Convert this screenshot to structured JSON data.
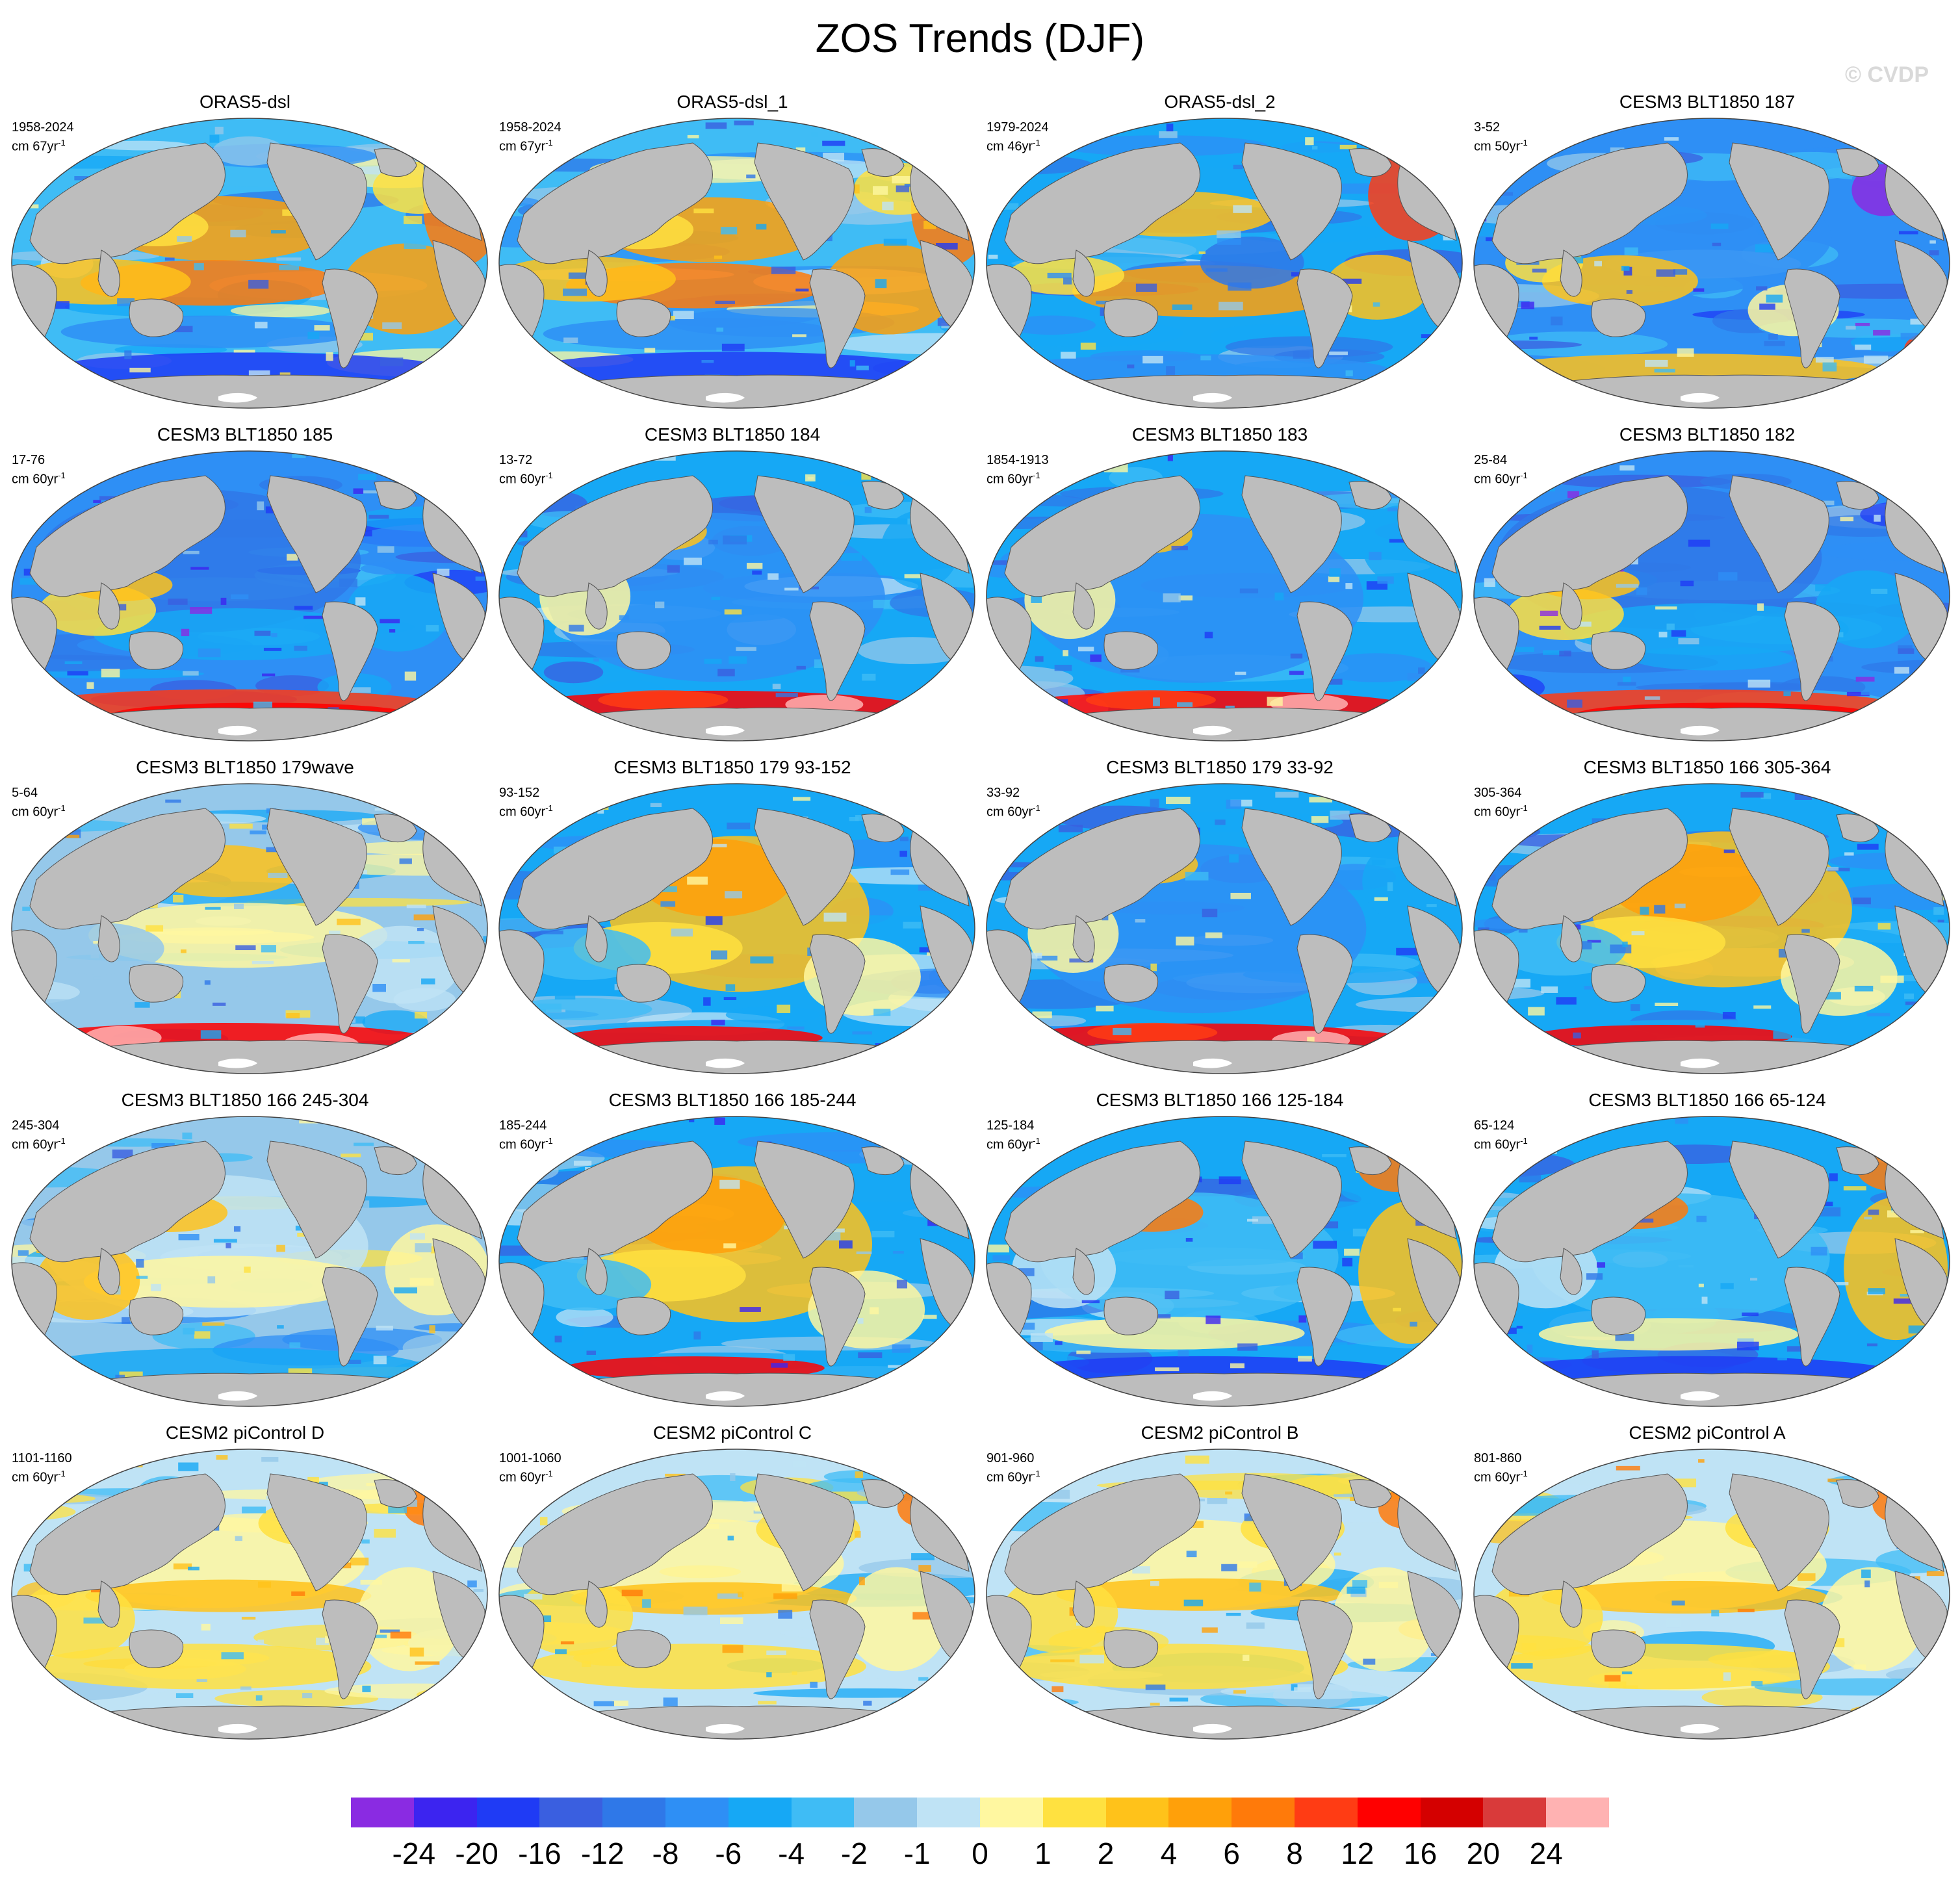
{
  "figure": {
    "title": "ZOS Trends (DJF)",
    "watermark": "© CVDP"
  },
  "panels": [
    {
      "title": "ORAS5-dsl",
      "period": "1958-2024",
      "units": "cm 67yr",
      "pattern": 0
    },
    {
      "title": "ORAS5-dsl_1",
      "period": "1958-2024",
      "units": "cm 67yr",
      "pattern": 0
    },
    {
      "title": "ORAS5-dsl_2",
      "period": "1979-2024",
      "units": "cm 46yr",
      "pattern": 1
    },
    {
      "title": "CESM3 BLT1850 187",
      "period": "3-52",
      "units": "cm 50yr",
      "pattern": 2
    },
    {
      "title": "CESM3 BLT1850 185",
      "period": "17-76",
      "units": "cm 60yr",
      "pattern": 3
    },
    {
      "title": "CESM3 BLT1850 184",
      "period": "13-72",
      "units": "cm 60yr",
      "pattern": 4
    },
    {
      "title": "CESM3 BLT1850 183",
      "period": "1854-1913",
      "units": "cm 60yr",
      "pattern": 4
    },
    {
      "title": "CESM3 BLT1850 182",
      "period": "25-84",
      "units": "cm 60yr",
      "pattern": 3
    },
    {
      "title": "CESM3 BLT1850 179wave",
      "period": "5-64",
      "units": "cm 60yr",
      "pattern": 5
    },
    {
      "title": "CESM3 BLT1850 179 93-152",
      "period": "93-152",
      "units": "cm 60yr",
      "pattern": 6
    },
    {
      "title": "CESM3 BLT1850 179 33-92",
      "period": "33-92",
      "units": "cm 60yr",
      "pattern": 4
    },
    {
      "title": "CESM3 BLT1850 166 305-364",
      "period": "305-364",
      "units": "cm 60yr",
      "pattern": 6
    },
    {
      "title": "CESM3 BLT1850 166 245-304",
      "period": "245-304",
      "units": "cm 60yr",
      "pattern": 7
    },
    {
      "title": "CESM3 BLT1850 166 185-244",
      "period": "185-244",
      "units": "cm 60yr",
      "pattern": 6
    },
    {
      "title": "CESM3 BLT1850 166 125-184",
      "period": "125-184",
      "units": "cm 60yr",
      "pattern": 8
    },
    {
      "title": "CESM3 BLT1850 166 65-124",
      "period": "65-124",
      "units": "cm 60yr",
      "pattern": 8
    },
    {
      "title": "CESM2 piControl D",
      "period": "1101-1160",
      "units": "cm 60yr",
      "pattern": 9
    },
    {
      "title": "CESM2 piControl C",
      "period": "1001-1060",
      "units": "cm 60yr",
      "pattern": 9
    },
    {
      "title": "CESM2 piControl B",
      "period": "901-960",
      "units": "cm 60yr",
      "pattern": 9
    },
    {
      "title": "CESM2 piControl A",
      "period": "801-860",
      "units": "cm 60yr",
      "pattern": 9
    }
  ],
  "units_superscript": "-1",
  "colorbar": {
    "colors": [
      "#8a2be2",
      "#3c24f0",
      "#1f3bf5",
      "#3a5fe0",
      "#2f78e8",
      "#2e8ff5",
      "#16a8f5",
      "#3fbcf5",
      "#95c8ea",
      "#bfe3f5",
      "#fff7a0",
      "#ffe140",
      "#ffc21a",
      "#ffa00a",
      "#ff7a0a",
      "#ff3c14",
      "#ff0000",
      "#d40000",
      "#d93a3a",
      "#ffb2b2"
    ],
    "labels": [
      "-24",
      "-20",
      "-16",
      "-12",
      "-8",
      "-6",
      "-4",
      "-2",
      "-1",
      "0",
      "1",
      "2",
      "4",
      "6",
      "8",
      "12",
      "16",
      "20",
      "24"
    ]
  },
  "colors": {
    "land": "#bdbdbd",
    "antarctica_edge": "#ffffff",
    "coastline": "#555555"
  }
}
